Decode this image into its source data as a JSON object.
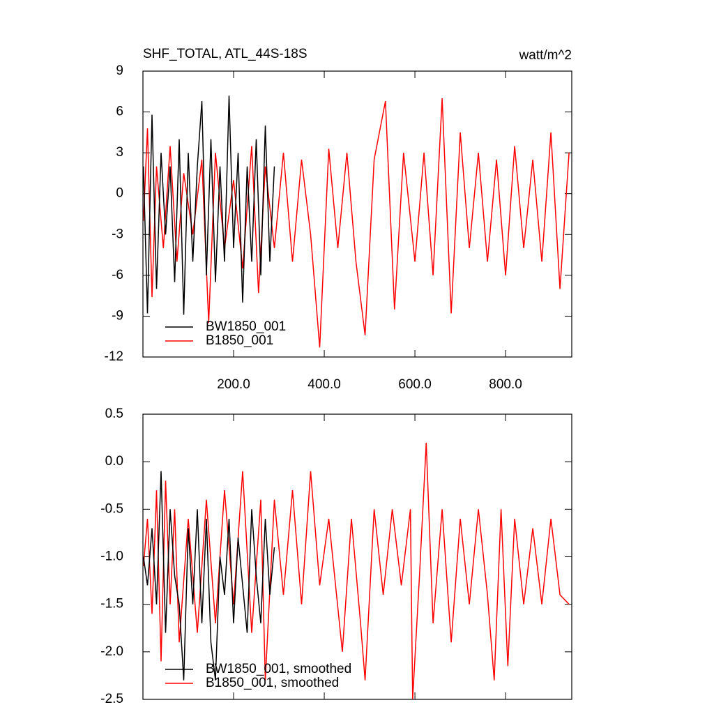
{
  "chart_data": [
    {
      "type": "line",
      "title": "SHF_TOTAL, ATL_44S-18S",
      "units": "watt/m^2",
      "xlim": [
        0,
        946
      ],
      "xticks": [
        {
          "value": 200,
          "label": "200.0"
        },
        {
          "value": 400,
          "label": "400.0"
        },
        {
          "value": 600,
          "label": "600.0"
        },
        {
          "value": 800,
          "label": "800.0"
        }
      ],
      "ylim": [
        -12,
        9
      ],
      "yticks": [
        -12,
        -9,
        -6,
        -3,
        0,
        3,
        6,
        9
      ],
      "legend": "lower left",
      "series": [
        {
          "name": "BW1850_001",
          "color": "#000000",
          "x": [
            1,
            10,
            20,
            30,
            40,
            50,
            60,
            70,
            80,
            90,
            100,
            110,
            120,
            130,
            140,
            150,
            160,
            170,
            180,
            190,
            200,
            210,
            220,
            230,
            240,
            250,
            260,
            270,
            280,
            290
          ],
          "values": [
            2,
            -8.8,
            5.8,
            -7,
            3,
            -3,
            2,
            -6.5,
            4,
            -8.9,
            3,
            -5,
            2,
            6.8,
            -6,
            4,
            -6.5,
            2,
            -5,
            7.2,
            -4,
            3,
            -8,
            2,
            -5,
            4,
            -6,
            5,
            -5,
            2
          ]
        },
        {
          "name": "B1850_001",
          "color": "#ff0000",
          "x": [
            1,
            10,
            20,
            30,
            45,
            60,
            75,
            90,
            110,
            130,
            145,
            160,
            180,
            200,
            220,
            240,
            255,
            270,
            290,
            310,
            330,
            350,
            370,
            390,
            410,
            430,
            450,
            470,
            490,
            510,
            535,
            555,
            575,
            600,
            620,
            640,
            660,
            680,
            700,
            720,
            740,
            760,
            780,
            800,
            820,
            840,
            860,
            880,
            900,
            920,
            940
          ],
          "values": [
            -2,
            4.8,
            -7.6,
            2,
            -4,
            3.5,
            -5,
            1.5,
            -3,
            2.5,
            -9.5,
            3,
            -4,
            1,
            -5.5,
            3.5,
            -7.3,
            2,
            -4,
            3,
            -5,
            2.5,
            -3,
            -11.3,
            3.3,
            -4,
            3,
            -5,
            -10.4,
            2.5,
            6.8,
            -8.5,
            3,
            -5,
            3,
            -6,
            7,
            -8.8,
            4.5,
            -4,
            3,
            -5,
            2.5,
            -6,
            3.5,
            -4,
            2.5,
            -5,
            4.5,
            -7,
            3
          ]
        }
      ]
    },
    {
      "type": "line",
      "xlim": [
        0,
        946
      ],
      "ylim": [
        -2.5,
        0.5
      ],
      "yticks": [
        -2.5,
        {
          "value": -2,
          "label": "-2.0"
        },
        -1.5,
        {
          "value": -1,
          "label": "-1.0"
        },
        -0.5,
        {
          "value": 0,
          "label": "0.0"
        },
        0.5
      ],
      "legend": "lower left",
      "series": [
        {
          "name": "BW1850_001, smoothed",
          "color": "#000000",
          "x": [
            1,
            10,
            20,
            30,
            40,
            50,
            60,
            70,
            80,
            90,
            100,
            110,
            120,
            130,
            140,
            150,
            160,
            170,
            180,
            190,
            200,
            210,
            220,
            230,
            240,
            250,
            260,
            270,
            280,
            290
          ],
          "values": [
            -1.0,
            -1.3,
            -0.7,
            -1.5,
            -0.1,
            -1.8,
            -0.5,
            -1.2,
            -1.5,
            -2.3,
            -0.7,
            -1.5,
            -0.5,
            -1.7,
            -0.6,
            -1.9,
            -2.3,
            -1.0,
            -1.4,
            -0.6,
            -1.7,
            -0.8,
            -1.3,
            -1.8,
            -0.5,
            -1.2,
            -1.7,
            -0.6,
            -1.4,
            -0.9
          ]
        },
        {
          "name": "B1850_001, smoothed",
          "color": "#ff0000",
          "x": [
            1,
            10,
            20,
            30,
            40,
            50,
            60,
            70,
            80,
            100,
            120,
            140,
            160,
            180,
            200,
            220,
            240,
            260,
            270,
            290,
            310,
            330,
            350,
            370,
            390,
            410,
            440,
            460,
            480,
            490,
            510,
            530,
            550,
            570,
            590,
            595,
            610,
            625,
            640,
            660,
            680,
            700,
            720,
            740,
            760,
            775,
            790,
            805,
            820,
            840,
            860,
            880,
            900,
            920,
            940
          ],
          "values": [
            -1.1,
            -0.6,
            -1.6,
            -0.3,
            -2.1,
            -0.2,
            -1.5,
            -0.5,
            -1.9,
            -0.6,
            -1.8,
            -0.4,
            -1.7,
            -0.3,
            -1.5,
            -0.1,
            -1.8,
            -0.4,
            -2.3,
            -0.4,
            -1.4,
            -0.3,
            -1.5,
            -0.1,
            -1.3,
            -0.6,
            -2.0,
            -0.6,
            -1.7,
            -2.3,
            -0.5,
            -1.4,
            -0.5,
            -1.3,
            -0.5,
            -2.5,
            -1.2,
            0.2,
            -1.7,
            -0.5,
            -1.9,
            -0.6,
            -1.5,
            -0.5,
            -1.4,
            -2.3,
            -0.5,
            -2.15,
            -0.6,
            -1.5,
            -0.7,
            -1.5,
            -0.6,
            -1.4,
            -1.5
          ]
        }
      ]
    }
  ]
}
